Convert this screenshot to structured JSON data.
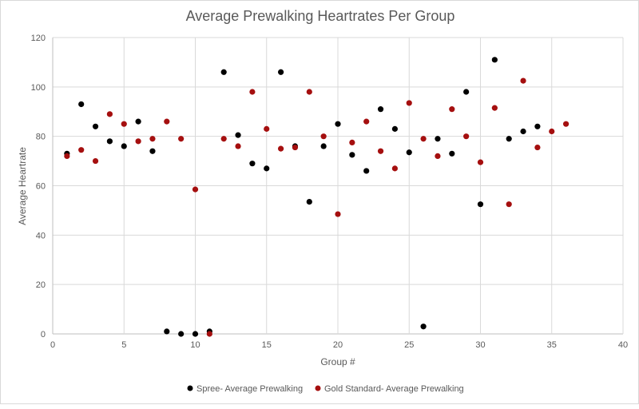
{
  "chart_data": {
    "type": "scatter",
    "title": "Average Prewalking Heartrates Per Group",
    "xlabel": "Group #",
    "ylabel": "Average Heartrate",
    "xlim": [
      0,
      40
    ],
    "ylim": [
      0,
      120
    ],
    "xticks": [
      0,
      5,
      10,
      15,
      20,
      25,
      30,
      35,
      40
    ],
    "yticks": [
      0,
      20,
      40,
      60,
      80,
      100,
      120
    ],
    "grid": true,
    "legend_position": "bottom",
    "series": [
      {
        "name": "Spree- Average Prewalking",
        "color": "#000000",
        "x": [
          1,
          2,
          3,
          4,
          5,
          6,
          7,
          8,
          9,
          10,
          11,
          12,
          13,
          14,
          15,
          16,
          17,
          18,
          19,
          20,
          21,
          22,
          23,
          24,
          25,
          26,
          27,
          28,
          29,
          30,
          31,
          32,
          33,
          34
        ],
        "y": [
          73,
          93,
          84,
          78,
          76,
          86,
          74,
          1,
          0,
          0,
          1,
          106,
          80.5,
          69,
          67,
          106,
          76,
          53.5,
          76,
          85,
          72.5,
          66,
          91,
          83,
          73.5,
          3,
          79,
          73,
          98,
          52.5,
          111,
          79,
          82,
          84
        ]
      },
      {
        "name": "Gold Standard- Average Prewalking",
        "color": "#A50F0F",
        "x": [
          1,
          2,
          3,
          4,
          5,
          6,
          7,
          8,
          9,
          10,
          11,
          12,
          13,
          14,
          15,
          16,
          17,
          18,
          19,
          20,
          21,
          22,
          23,
          24,
          25,
          26,
          27,
          28,
          29,
          30,
          31,
          32,
          33,
          34,
          35,
          36
        ],
        "y": [
          72,
          74.5,
          70,
          89,
          85,
          78,
          79,
          86,
          79,
          58.5,
          0,
          79,
          76,
          98,
          83,
          75,
          75.5,
          98,
          80,
          48.5,
          77.5,
          86,
          74,
          67,
          93.5,
          79,
          72,
          91,
          80,
          69.5,
          91.5,
          52.5,
          102.5,
          75.5,
          82,
          85
        ]
      }
    ]
  }
}
